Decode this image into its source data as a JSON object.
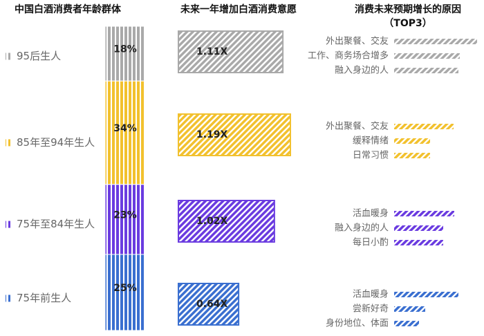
{
  "chart_data": [
    {
      "type": "stacked-bar",
      "title": "中国白酒消费者年龄群体",
      "categories": [
        "95后生人",
        "85年至94年生人",
        "75年至84年生人",
        "75年前生人"
      ],
      "values": [
        18,
        34,
        23,
        25
      ],
      "value_labels": [
        "18%",
        "34%",
        "23%",
        "25%"
      ],
      "colors": [
        "#a9a9a9",
        "#f2c12e",
        "#6a3be0",
        "#3a6fd0"
      ]
    },
    {
      "type": "hbar",
      "title": "未来一年增加白酒消费意愿",
      "values": [
        1.11,
        1.19,
        1.02,
        0.64
      ],
      "value_labels": [
        "1.11X",
        "1.19X",
        "1.02X",
        "0.64X"
      ],
      "colors": [
        "#a9a9a9",
        "#f2c12e",
        "#6a3be0",
        "#3a6fd0"
      ],
      "xlim": [
        0,
        1.19
      ]
    },
    {
      "type": "grouped-hbar",
      "title": "消费未来预期增长的原因（TOP3）",
      "xlim": [
        0,
        120
      ],
      "groups": [
        {
          "categories": [
            "外出聚餐、交友",
            "工作、商务场合增多",
            "融入身边的人"
          ],
          "values": [
            120,
            95,
            93
          ],
          "color": "#a9a9a9"
        },
        {
          "categories": [
            "外出聚餐、交友",
            "缓释情绪",
            "日常习惯"
          ],
          "values": [
            86,
            52,
            52
          ],
          "color": "#f2c12e"
        },
        {
          "categories": [
            "活血暖身",
            "融入身边的人",
            "每日小酌"
          ],
          "values": [
            87,
            71,
            71
          ],
          "color": "#6a3be0"
        },
        {
          "categories": [
            "活血暖身",
            "尝新好奇",
            "身份地位、体面"
          ],
          "values": [
            93,
            45,
            36
          ],
          "color": "#3a6fd0"
        }
      ]
    }
  ]
}
